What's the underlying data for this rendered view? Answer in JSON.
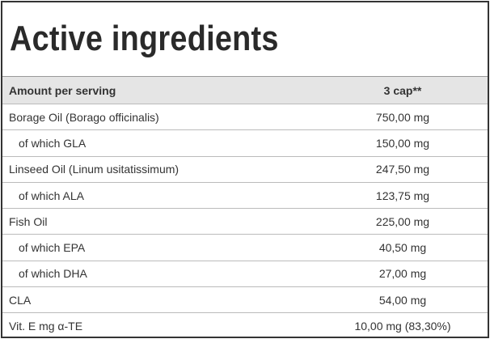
{
  "title": "Active ingredients",
  "table": {
    "header": [
      "Amount per serving",
      "3 cap**"
    ],
    "rows": [
      [
        "Borage Oil (Borago officinalis)",
        "750,00 mg"
      ],
      [
        "of which GLA",
        "150,00 mg"
      ],
      [
        "Linseed Oil (Linum usitatissimum)",
        "247,50 mg"
      ],
      [
        "of which ALA",
        "123,75 mg"
      ],
      [
        "Fish Oil",
        "225,00 mg"
      ],
      [
        "of which EPA",
        "40,50 mg"
      ],
      [
        "of which DHA",
        "27,00 mg"
      ],
      [
        "CLA",
        "54,00 mg"
      ],
      [
        "Vit. E mg α-TE",
        "10,00 mg (83,30%)"
      ]
    ]
  }
}
